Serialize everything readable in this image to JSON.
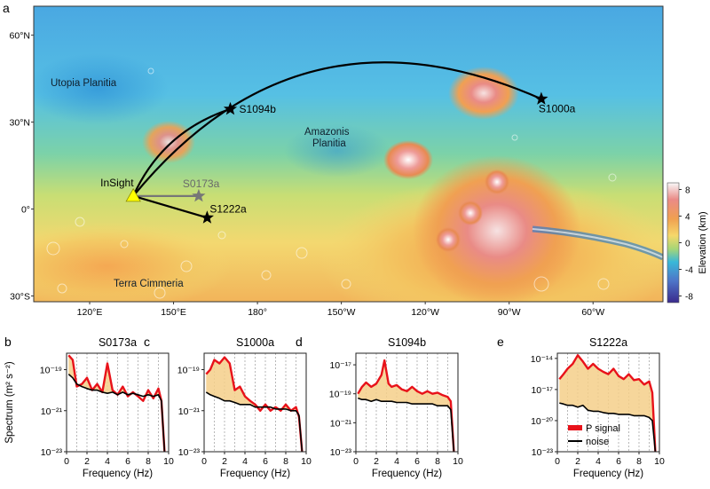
{
  "map": {
    "panel_label": "a",
    "lat_ticks": [
      "60°N",
      "30°N",
      "0°",
      "30°S"
    ],
    "lon_ticks": [
      "120°E",
      "150°E",
      "180°",
      "150°W",
      "120°W",
      "90°W",
      "60°W"
    ],
    "region_labels": [
      "Utopia Planitia",
      "Amazonis",
      "Planitia",
      "Terra Cimmeria"
    ],
    "station": {
      "name": "InSight",
      "lon": 135.6,
      "lat": 4.5,
      "color": "#ffff00"
    },
    "events": [
      {
        "name": "S1094b",
        "lon": 170.3,
        "lat": 34.5,
        "color": "#000000"
      },
      {
        "name": "S1000a",
        "lon": -78.5,
        "lat": 38.0,
        "color": "#000000"
      },
      {
        "name": "S0173a",
        "lon": 159.0,
        "lat": 4.5,
        "color": "#777777"
      },
      {
        "name": "S1222a",
        "lon": 162.0,
        "lat": -3.0,
        "color": "#000000"
      }
    ],
    "colorbar": {
      "label": "Elevation (km)",
      "ticks": [
        "8",
        "4",
        "0",
        "-4",
        "-8"
      ],
      "range_km": [
        -9,
        9
      ],
      "colors": [
        "#f8f8f8",
        "#ea8a86",
        "#f0a050",
        "#f6d86a",
        "#a7d676",
        "#3ab8d8",
        "#4e74c8",
        "#3a2a8c"
      ]
    }
  },
  "spectra": {
    "ylabel": "Spectrum (m² s⁻²)",
    "xlabel": "Frequency (Hz)",
    "xticks": [
      "0",
      "2",
      "4",
      "6",
      "8",
      "10"
    ],
    "legend": {
      "signal": "P signal",
      "noise": "noise"
    },
    "panels": [
      {
        "label": "b",
        "title": "S0173a",
        "yticks": [
          "10⁻¹⁹",
          "10⁻²¹",
          "10⁻²³"
        ],
        "ylog": [
          -23,
          -18.2
        ]
      },
      {
        "label": "c",
        "title": "S1000a",
        "yticks": [
          "10⁻¹⁹",
          "10⁻²¹",
          "10⁻²³"
        ],
        "ylog": [
          -23,
          -18.2
        ]
      },
      {
        "label": "d",
        "title": "S1094b",
        "yticks": [
          "10⁻¹⁷",
          "10⁻¹⁹",
          "10⁻²¹",
          "10⁻²³"
        ],
        "ylog": [
          -23,
          -16.2
        ]
      },
      {
        "label": "e",
        "title": "S1222a",
        "yticks": [
          "10⁻¹⁴",
          "10⁻¹⁷",
          "10⁻²⁰",
          "10⁻²³"
        ],
        "ylog": [
          -23,
          -13.5
        ]
      }
    ]
  },
  "chart_data": [
    {
      "type": "line",
      "title": "S0173a",
      "xlabel": "Frequency (Hz)",
      "ylabel": "Spectrum (m² s⁻²)",
      "xlim": [
        0,
        10
      ],
      "ylim": [
        1e-23,
        6e-19
      ],
      "yscale": "log",
      "x": [
        0.2,
        0.6,
        1.0,
        1.5,
        2.0,
        2.5,
        3.0,
        3.5,
        4.0,
        4.5,
        5.0,
        5.5,
        6.0,
        6.5,
        7.0,
        7.5,
        8.0,
        8.5,
        9.0,
        9.3,
        9.6
      ],
      "series": [
        {
          "name": "P signal",
          "values": [
            5e-19,
            3e-19,
            1.5e-20,
            2e-20,
            4e-20,
            1e-20,
            2e-20,
            8e-21,
            2e-19,
            1e-20,
            6e-21,
            1.5e-20,
            5e-21,
            8e-21,
            5e-21,
            3e-21,
            1e-20,
            4e-21,
            1.2e-20,
            3e-21,
            1e-23
          ]
        },
        {
          "name": "noise",
          "values": [
            6e-20,
            4e-20,
            2e-20,
            1.5e-20,
            1.2e-20,
            1e-20,
            1e-20,
            8e-21,
            7e-21,
            8e-21,
            6e-21,
            8e-21,
            6e-21,
            7e-21,
            6e-21,
            5e-21,
            6e-21,
            5e-21,
            6e-21,
            3e-21,
            1e-23
          ]
        }
      ]
    },
    {
      "type": "line",
      "title": "S1000a",
      "xlabel": "Frequency (Hz)",
      "ylabel": "Spectrum (m² s⁻²)",
      "xlim": [
        0,
        10
      ],
      "ylim": [
        1e-23,
        6e-19
      ],
      "yscale": "log",
      "x": [
        0.2,
        0.6,
        1.0,
        1.5,
        2.0,
        2.5,
        3.0,
        3.5,
        4.0,
        4.5,
        5.0,
        5.5,
        6.0,
        6.5,
        7.0,
        7.5,
        8.0,
        8.5,
        9.0,
        9.3,
        9.6
      ],
      "series": [
        {
          "name": "P signal",
          "values": [
            6e-20,
            1e-19,
            3e-19,
            2e-19,
            4e-19,
            2e-19,
            1e-20,
            1.5e-20,
            5e-21,
            3e-21,
            2e-21,
            1e-21,
            2e-21,
            1e-21,
            1.5e-21,
            1e-21,
            2e-21,
            1e-21,
            1.5e-21,
            5e-22,
            1e-23
          ]
        },
        {
          "name": "noise",
          "values": [
            8e-21,
            6e-21,
            5e-21,
            4e-21,
            3e-21,
            3e-21,
            2.5e-21,
            2e-21,
            2e-21,
            2e-21,
            1.5e-21,
            1.5e-21,
            1.5e-21,
            1.5e-21,
            1.2e-21,
            1.2e-21,
            1.2e-21,
            1e-21,
            1e-21,
            6e-22,
            1e-23
          ]
        }
      ]
    },
    {
      "type": "line",
      "title": "S1094b",
      "xlabel": "Frequency (Hz)",
      "ylabel": "Spectrum (m² s⁻²)",
      "xlim": [
        0,
        10
      ],
      "ylim": [
        1e-23,
        6e-17
      ],
      "yscale": "log",
      "x": [
        0.2,
        0.6,
        1.0,
        1.5,
        2.0,
        2.5,
        2.8,
        3.2,
        3.5,
        4.0,
        4.5,
        5.0,
        5.5,
        6.0,
        6.5,
        7.0,
        7.5,
        8.0,
        8.5,
        9.0,
        9.3,
        9.6
      ],
      "series": [
        {
          "name": "P signal",
          "values": [
            1e-19,
            3e-19,
            6e-19,
            3e-19,
            5e-19,
            2e-18,
            2e-17,
            5e-19,
            3e-19,
            4e-19,
            2e-19,
            1.5e-19,
            3e-19,
            1.5e-19,
            1e-19,
            1.5e-19,
            1e-19,
            1.2e-19,
            8e-20,
            6e-20,
            3e-20,
            1e-23
          ]
        },
        {
          "name": "noise",
          "values": [
            5e-20,
            4e-20,
            4e-20,
            3e-20,
            4e-20,
            3e-20,
            3e-20,
            3e-20,
            3e-20,
            2.5e-20,
            2.5e-20,
            2.5e-20,
            2e-20,
            2e-20,
            2e-20,
            2e-20,
            2e-20,
            1.5e-20,
            1.5e-20,
            1.5e-20,
            8e-21,
            1e-23
          ]
        }
      ]
    },
    {
      "type": "line",
      "title": "S1222a",
      "xlabel": "Frequency (Hz)",
      "ylabel": "Spectrum (m² s⁻²)",
      "xlim": [
        0,
        10
      ],
      "ylim": [
        1e-23,
        3e-14
      ],
      "yscale": "log",
      "x": [
        0.2,
        0.6,
        1.0,
        1.5,
        2.0,
        2.5,
        3.0,
        3.5,
        4.0,
        4.5,
        5.0,
        5.5,
        6.0,
        6.5,
        7.0,
        7.5,
        8.0,
        8.5,
        9.0,
        9.3,
        9.6
      ],
      "series": [
        {
          "name": "P signal",
          "values": [
            1e-16,
            3e-16,
            1e-15,
            3e-15,
            2e-14,
            5e-15,
            1e-15,
            3e-15,
            1e-15,
            5e-16,
            3e-16,
            1e-15,
            2e-16,
            1e-16,
            3e-16,
            8e-17,
            1e-16,
            3e-17,
            6e-17,
            5e-18,
            1e-23
          ]
        },
        {
          "name": "noise",
          "values": [
            5e-19,
            4e-19,
            3e-19,
            3e-19,
            2e-19,
            3e-19,
            1e-19,
            8e-20,
            8e-20,
            6e-20,
            5e-20,
            5e-20,
            4e-20,
            4e-20,
            4e-20,
            3e-20,
            3e-20,
            3e-20,
            2e-20,
            1e-20,
            1e-23
          ]
        }
      ]
    }
  ]
}
